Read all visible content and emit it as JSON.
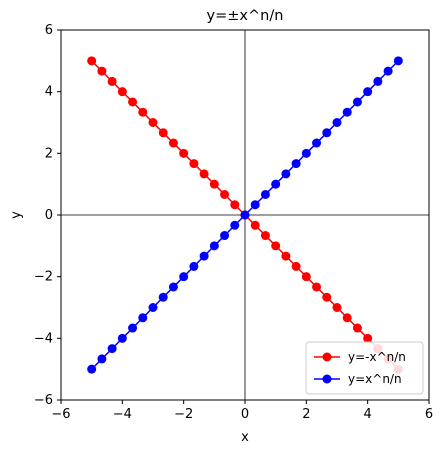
{
  "chart_data": {
    "type": "line",
    "title": "y=±x^n/n",
    "xlabel": "x",
    "ylabel": "y",
    "xlim": [
      -6,
      6
    ],
    "ylim": [
      -6,
      6
    ],
    "xticks": [
      "−6",
      "−4",
      "−2",
      "0",
      "2",
      "4",
      "6"
    ],
    "yticks": [
      "−6",
      "−4",
      "−2",
      "0",
      "2",
      "4",
      "6"
    ],
    "grid": false,
    "axhline": 0,
    "axvline": 0,
    "legend_position": "bottom-right",
    "x": [
      -5.0,
      -4.6667,
      -4.3333,
      -4.0,
      -3.6667,
      -3.3333,
      -3.0,
      -2.6667,
      -2.3333,
      -2.0,
      -1.6667,
      -1.3333,
      -1.0,
      -0.6667,
      -0.3333,
      0.0,
      0.3333,
      0.6667,
      1.0,
      1.3333,
      1.6667,
      2.0,
      2.3333,
      2.6667,
      3.0,
      3.3333,
      3.6667,
      4.0,
      4.3333,
      4.6667,
      5.0
    ],
    "series": [
      {
        "name": "y=-x^n/n",
        "color": "#ff0000",
        "values": [
          5.0,
          4.6667,
          4.3333,
          4.0,
          3.6667,
          3.3333,
          3.0,
          2.6667,
          2.3333,
          2.0,
          1.6667,
          1.3333,
          1.0,
          0.6667,
          0.3333,
          0.0,
          -0.3333,
          -0.6667,
          -1.0,
          -1.3333,
          -1.6667,
          -2.0,
          -2.3333,
          -2.6667,
          -3.0,
          -3.3333,
          -3.6667,
          -4.0,
          -4.3333,
          -4.6667,
          -5.0
        ]
      },
      {
        "name": "y=x^n/n",
        "color": "#0000ff",
        "values": [
          -5.0,
          -4.6667,
          -4.3333,
          -4.0,
          -3.6667,
          -3.3333,
          -3.0,
          -2.6667,
          -2.3333,
          -2.0,
          -1.6667,
          -1.3333,
          -1.0,
          -0.6667,
          -0.3333,
          0.0,
          0.3333,
          0.6667,
          1.0,
          1.3333,
          1.6667,
          2.0,
          2.3333,
          2.6667,
          3.0,
          3.3333,
          3.6667,
          4.0,
          4.3333,
          4.6667,
          5.0
        ]
      }
    ]
  }
}
